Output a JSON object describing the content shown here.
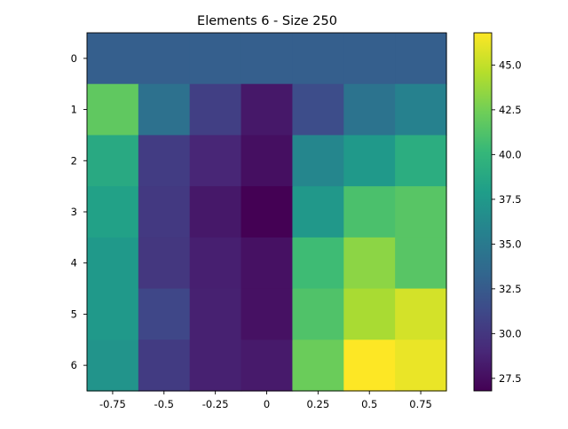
{
  "chart_data": {
    "type": "heatmap",
    "title": "Elements 6 - Size 250",
    "x_tick_labels": [
      "-0.75",
      "-0.5",
      "-0.25",
      "0",
      "0.25",
      "0.5",
      "0.75"
    ],
    "y_tick_labels": [
      "0",
      "1",
      "2",
      "3",
      "4",
      "5",
      "6"
    ],
    "values": [
      [
        32.8,
        32.8,
        32.8,
        32.8,
        32.8,
        32.8,
        32.8
      ],
      [
        41.8,
        34.2,
        30.6,
        28.1,
        31.5,
        34.4,
        35.6
      ],
      [
        38.9,
        30.4,
        28.9,
        27.6,
        36.0,
        37.5,
        39.2
      ],
      [
        38.2,
        30.2,
        28.1,
        26.8,
        37.4,
        41.0,
        41.5
      ],
      [
        37.5,
        30.0,
        28.5,
        27.7,
        40.5,
        43.3,
        41.5
      ],
      [
        37.5,
        31.1,
        28.6,
        27.7,
        41.2,
        44.2,
        45.5
      ],
      [
        37.1,
        30.3,
        28.6,
        28.2,
        42.2,
        46.8,
        46.2
      ]
    ],
    "colorbar": {
      "min": 26.8,
      "max": 46.8,
      "ticks": [
        27.5,
        30.0,
        32.5,
        35.0,
        37.5,
        40.0,
        42.5,
        45.0
      ],
      "tick_labels": [
        "27.5",
        "30.0",
        "32.5",
        "35.0",
        "37.5",
        "40.0",
        "42.5",
        "45.0"
      ],
      "colormap": "viridis"
    }
  }
}
